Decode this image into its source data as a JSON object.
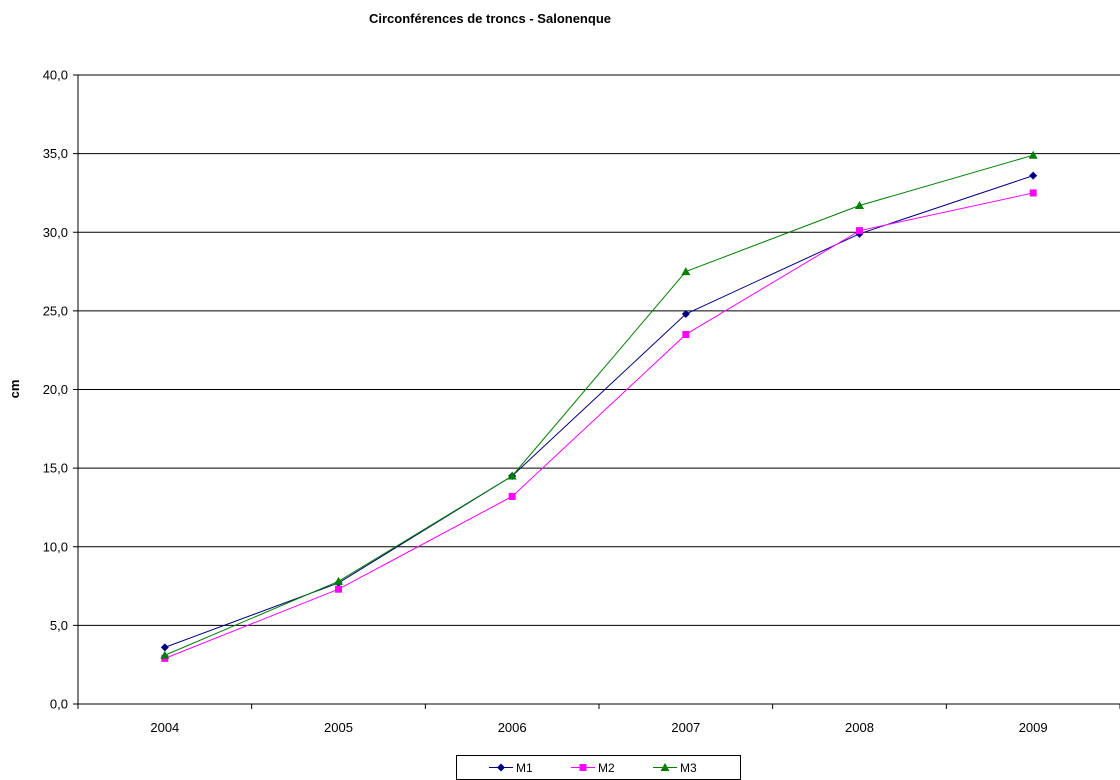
{
  "chart_data": {
    "type": "line",
    "title": "Circonférences de troncs - Salonenque",
    "xlabel": "",
    "ylabel": "cm",
    "categories": [
      "2004",
      "2005",
      "2006",
      "2007",
      "2008",
      "2009"
    ],
    "ylim": [
      0,
      40
    ],
    "y_ticks": [
      "0,0",
      "5,0",
      "10,0",
      "15,0",
      "20,0",
      "25,0",
      "30,0",
      "35,0",
      "40,0"
    ],
    "grid": "horizontal",
    "legend_position": "bottom",
    "series": [
      {
        "name": "M1",
        "color": "#000080",
        "marker": "diamond",
        "values": [
          3.6,
          7.7,
          14.5,
          24.8,
          29.9,
          33.6
        ]
      },
      {
        "name": "M2",
        "color": "#FF00FF",
        "marker": "square",
        "values": [
          2.9,
          7.3,
          13.2,
          23.5,
          30.1,
          32.5
        ]
      },
      {
        "name": "M3",
        "color": "#008000",
        "marker": "triangle",
        "values": [
          3.1,
          7.8,
          14.5,
          27.5,
          31.7,
          34.9
        ]
      }
    ]
  }
}
